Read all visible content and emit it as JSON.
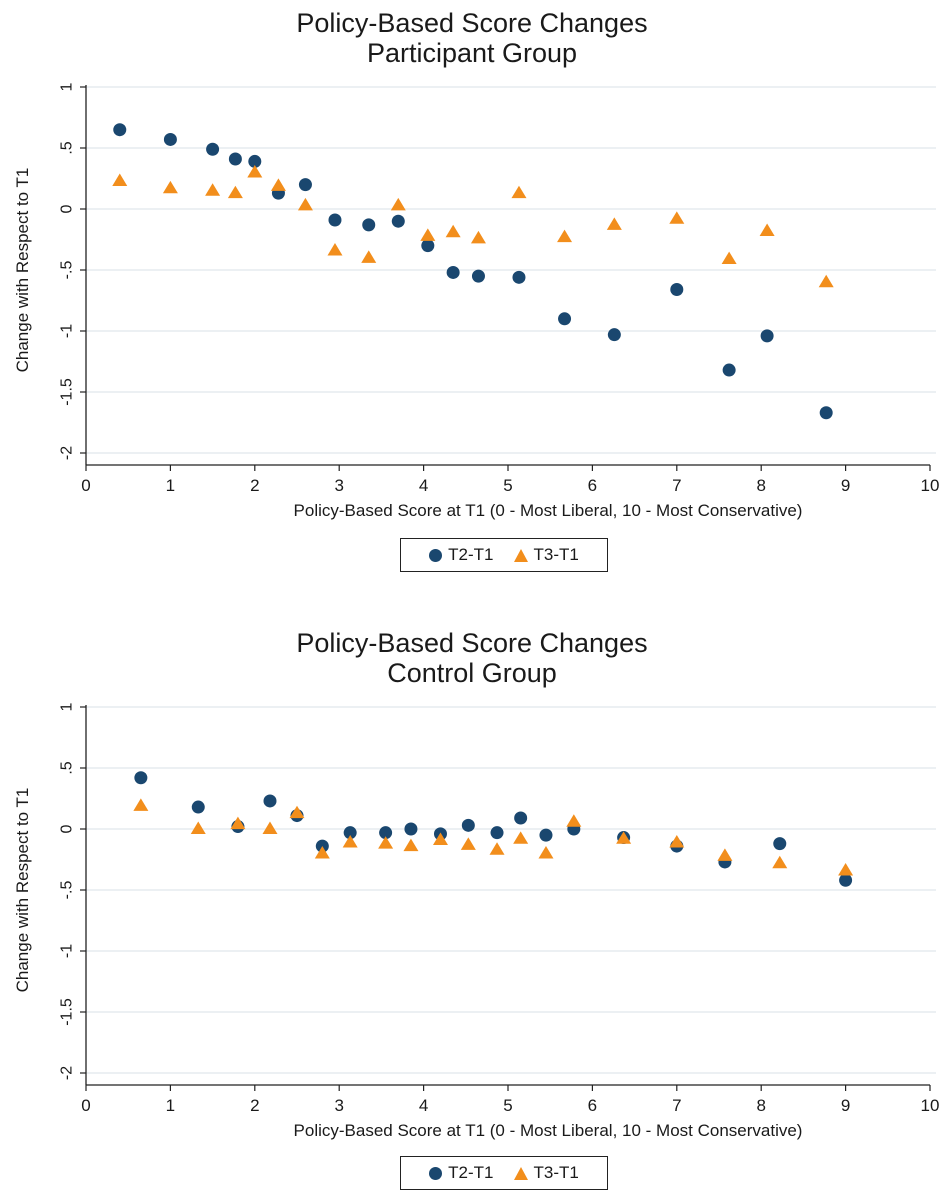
{
  "colors": {
    "t2": "#1a476f",
    "t3": "#f28e1c",
    "grid": "#e6ecef",
    "axis": "#222222"
  },
  "chart_data": [
    {
      "type": "scatter",
      "title": "Policy-Based Score Changes",
      "subtitle": "Participant Group",
      "xlabel": "Policy-Based Score at T1 (0 - Most Liberal, 10 - Most Conservative)",
      "ylabel": "Change with Respect to T1",
      "xlim": [
        0,
        10
      ],
      "ylim": [
        -2,
        1
      ],
      "xticks": [
        "0",
        "1",
        "2",
        "3",
        "4",
        "5",
        "6",
        "7",
        "8",
        "9",
        "10"
      ],
      "yticks": [
        "1",
        ".5",
        "0",
        "-.5",
        "-1",
        "-1.5",
        "-2"
      ],
      "grid": true,
      "legend_position": "bottom",
      "legend": [
        "T2-T1",
        "T3-T1"
      ],
      "series": [
        {
          "name": "T2-T1",
          "marker": "circle",
          "x": [
            0.4,
            1.0,
            1.5,
            1.77,
            2.0,
            2.28,
            2.6,
            2.95,
            3.35,
            3.7,
            4.05,
            4.35,
            4.65,
            5.13,
            5.67,
            6.26,
            7.0,
            7.62,
            8.07,
            8.77
          ],
          "y": [
            0.65,
            0.57,
            0.49,
            0.41,
            0.39,
            0.13,
            0.2,
            -0.09,
            -0.13,
            -0.1,
            -0.3,
            -0.52,
            -0.55,
            -0.56,
            -0.9,
            -1.03,
            -0.66,
            -1.32,
            -1.04,
            -1.67
          ]
        },
        {
          "name": "T3-T1",
          "marker": "triangle",
          "x": [
            0.4,
            1.0,
            1.5,
            1.77,
            2.0,
            2.28,
            2.6,
            2.95,
            3.35,
            3.7,
            4.05,
            4.35,
            4.65,
            5.13,
            5.67,
            6.26,
            7.0,
            7.62,
            8.07,
            8.77
          ],
          "y": [
            0.23,
            0.17,
            0.15,
            0.13,
            0.3,
            0.19,
            0.03,
            -0.34,
            -0.4,
            0.03,
            -0.22,
            -0.19,
            -0.24,
            0.13,
            -0.23,
            -0.13,
            -0.08,
            -0.41,
            -0.18,
            -0.6
          ]
        }
      ]
    },
    {
      "type": "scatter",
      "title": "Policy-Based Score Changes",
      "subtitle": "Control Group",
      "xlabel": "Policy-Based Score at T1 (0 - Most Liberal, 10 - Most Conservative)",
      "ylabel": "Change with Respect to T1",
      "xlim": [
        0,
        10
      ],
      "ylim": [
        -2,
        1
      ],
      "xticks": [
        "0",
        "1",
        "2",
        "3",
        "4",
        "5",
        "6",
        "7",
        "8",
        "9",
        "10"
      ],
      "yticks": [
        "1",
        ".5",
        "0",
        "-.5",
        "-1",
        "-1.5",
        "-2"
      ],
      "grid": true,
      "legend_position": "bottom",
      "legend": [
        "T2-T1",
        "T3-T1"
      ],
      "series": [
        {
          "name": "T2-T1",
          "marker": "circle",
          "x": [
            0.65,
            1.33,
            1.8,
            2.18,
            2.5,
            2.8,
            3.13,
            3.55,
            3.85,
            4.2,
            4.53,
            4.87,
            5.15,
            5.45,
            5.78,
            6.37,
            7.0,
            7.57,
            8.22,
            9.0
          ],
          "y": [
            0.42,
            0.18,
            0.02,
            0.23,
            0.11,
            -0.14,
            -0.03,
            -0.03,
            0.0,
            -0.04,
            0.03,
            -0.03,
            0.09,
            -0.05,
            0.0,
            -0.07,
            -0.14,
            -0.27,
            -0.12,
            -0.42
          ]
        },
        {
          "name": "T3-T1",
          "marker": "triangle",
          "x": [
            0.65,
            1.33,
            1.8,
            2.18,
            2.5,
            2.8,
            3.13,
            3.55,
            3.85,
            4.2,
            4.53,
            4.87,
            5.15,
            5.45,
            5.78,
            6.37,
            7.0,
            7.57,
            8.22,
            9.0
          ],
          "y": [
            0.19,
            0.0,
            0.04,
            0.0,
            0.13,
            -0.2,
            -0.11,
            -0.12,
            -0.14,
            -0.09,
            -0.13,
            -0.17,
            -0.08,
            -0.2,
            0.06,
            -0.08,
            -0.11,
            -0.22,
            -0.28,
            -0.34
          ]
        }
      ]
    }
  ]
}
